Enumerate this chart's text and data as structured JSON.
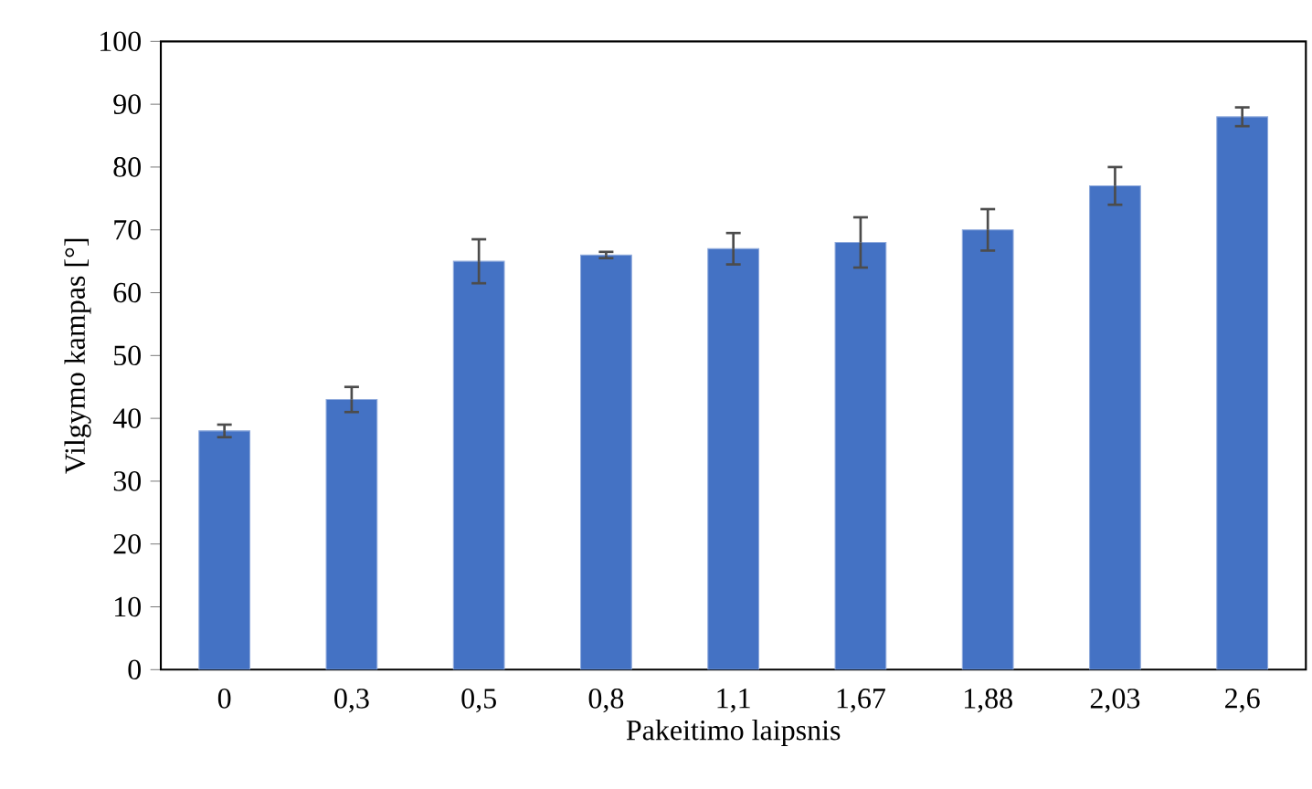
{
  "chart_data": {
    "type": "bar",
    "categories": [
      "0",
      "0,3",
      "0,5",
      "0,8",
      "1,1",
      "1,67",
      "1,88",
      "2,03",
      "2,6"
    ],
    "values": [
      38,
      43,
      65,
      66,
      67,
      68,
      70,
      77,
      88
    ],
    "errors": [
      1,
      2,
      3.5,
      0.5,
      2.5,
      4,
      3.3,
      3,
      1.5
    ],
    "color": "#4472c4",
    "xlabel": "Pakeitimo laipsnis",
    "ylabel": "Vilgymo kampas [°]",
    "ylim": [
      0,
      100
    ],
    "yticks": [
      0,
      10,
      20,
      30,
      40,
      50,
      60,
      70,
      80,
      90,
      100
    ],
    "grid": false
  }
}
